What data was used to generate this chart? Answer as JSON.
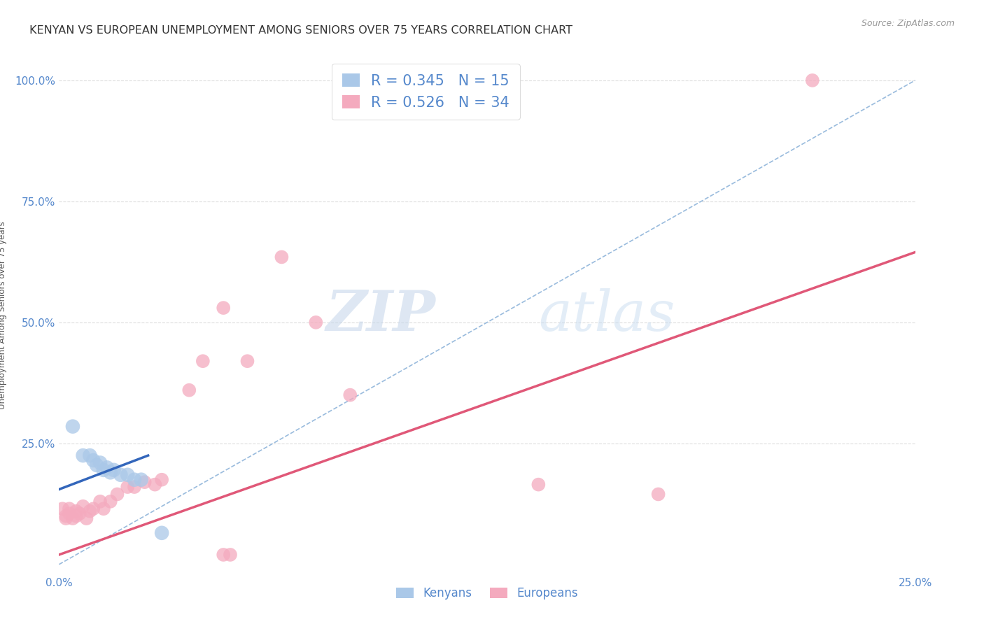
{
  "title": "KENYAN VS EUROPEAN UNEMPLOYMENT AMONG SENIORS OVER 75 YEARS CORRELATION CHART",
  "source": "Source: ZipAtlas.com",
  "ylabel": "Unemployment Among Seniors over 75 years",
  "xlim": [
    0.0,
    0.25
  ],
  "ylim": [
    -0.02,
    1.05
  ],
  "xticks": [
    0.0,
    0.05,
    0.1,
    0.15,
    0.2,
    0.25
  ],
  "yticks": [
    0.0,
    0.25,
    0.5,
    0.75,
    1.0
  ],
  "xticklabels": [
    "0.0%",
    "",
    "",
    "",
    "",
    "25.0%"
  ],
  "yticklabels": [
    "",
    "25.0%",
    "50.0%",
    "75.0%",
    "100.0%"
  ],
  "kenyan_R": "0.345",
  "kenyan_N": "15",
  "european_R": "0.526",
  "european_N": "34",
  "kenyan_color": "#aac8e8",
  "european_color": "#f4aabe",
  "kenyan_line_color": "#3366bb",
  "european_line_color": "#e05878",
  "diagonal_color": "#99bbdd",
  "background_color": "#ffffff",
  "watermark_zip": "ZIP",
  "watermark_atlas": "atlas",
  "kenyan_points": [
    [
      0.004,
      0.285
    ],
    [
      0.007,
      0.225
    ],
    [
      0.009,
      0.225
    ],
    [
      0.01,
      0.215
    ],
    [
      0.011,
      0.205
    ],
    [
      0.012,
      0.21
    ],
    [
      0.013,
      0.195
    ],
    [
      0.014,
      0.2
    ],
    [
      0.015,
      0.19
    ],
    [
      0.016,
      0.195
    ],
    [
      0.018,
      0.185
    ],
    [
      0.02,
      0.185
    ],
    [
      0.022,
      0.175
    ],
    [
      0.024,
      0.175
    ],
    [
      0.03,
      0.065
    ]
  ],
  "european_points": [
    [
      0.001,
      0.115
    ],
    [
      0.002,
      0.1
    ],
    [
      0.002,
      0.095
    ],
    [
      0.003,
      0.115
    ],
    [
      0.003,
      0.105
    ],
    [
      0.004,
      0.095
    ],
    [
      0.005,
      0.11
    ],
    [
      0.005,
      0.1
    ],
    [
      0.006,
      0.105
    ],
    [
      0.007,
      0.12
    ],
    [
      0.008,
      0.095
    ],
    [
      0.009,
      0.11
    ],
    [
      0.01,
      0.115
    ],
    [
      0.012,
      0.13
    ],
    [
      0.013,
      0.115
    ],
    [
      0.015,
      0.13
    ],
    [
      0.017,
      0.145
    ],
    [
      0.02,
      0.16
    ],
    [
      0.022,
      0.16
    ],
    [
      0.025,
      0.17
    ],
    [
      0.028,
      0.165
    ],
    [
      0.03,
      0.175
    ],
    [
      0.038,
      0.36
    ],
    [
      0.042,
      0.42
    ],
    [
      0.048,
      0.53
    ],
    [
      0.048,
      0.02
    ],
    [
      0.05,
      0.02
    ],
    [
      0.055,
      0.42
    ],
    [
      0.065,
      0.635
    ],
    [
      0.075,
      0.5
    ],
    [
      0.085,
      0.35
    ],
    [
      0.14,
      0.165
    ],
    [
      0.175,
      0.145
    ],
    [
      0.22,
      1.0
    ]
  ],
  "marker_size_kenyan": 220,
  "marker_size_european": 200,
  "grid_color": "#dddddd",
  "legend_fontsize": 15,
  "title_fontsize": 11.5,
  "tick_fontsize": 11,
  "tick_color": "#5588cc"
}
